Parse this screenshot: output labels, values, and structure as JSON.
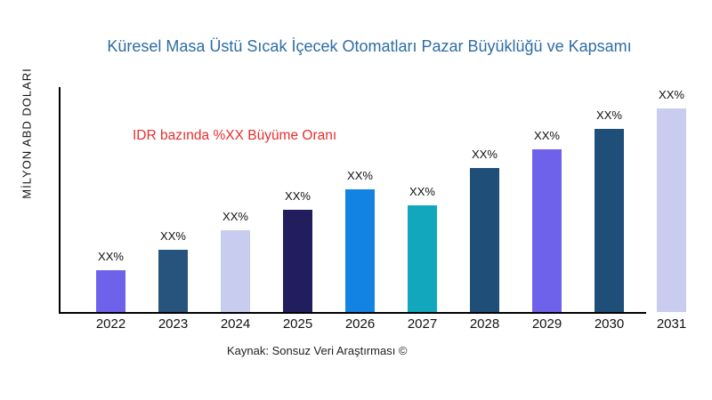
{
  "chart_data": {
    "type": "bar",
    "title": "Küresel Masa Üstü Sıcak İçecek Otomatları Pazar Büyüklüğü ve Kapsamı",
    "ylabel": "MİLYON ABD DOLARI",
    "xlabel": "",
    "annotation": "IDR bazında %XX Büyüme Oranı",
    "source": "Kaynak: Sonsuz Veri Araştırması ©",
    "categories": [
      "2022",
      "2023",
      "2024",
      "2025",
      "2026",
      "2027",
      "2028",
      "2029",
      "2030",
      "2031"
    ],
    "values": [
      20.5,
      30.6,
      40.2,
      50.2,
      60.3,
      52.4,
      70.8,
      79.9,
      90.0,
      100.0
    ],
    "values_estimated": true,
    "value_scale": "relative index, 2031 bar = 100 (actual figures masked as XX% in source image)",
    "bar_labels": [
      "XX%",
      "XX%",
      "XX%",
      "XX%",
      "XX%",
      "XX%",
      "XX%",
      "XX%",
      "XX%",
      "XX%"
    ],
    "bar_colors": [
      "#6F62EA",
      "#26547C",
      "#C8CCEE",
      "#221E5E",
      "#1283E3",
      "#13A7BE",
      "#1F4E79",
      "#6F62EA",
      "#1F4E79",
      "#C8CCEE"
    ],
    "ylim": [
      0,
      105
    ],
    "grid": false,
    "legend": false
  },
  "colors": {
    "background": "#FFFFFF",
    "title": "#2E6DA4",
    "annotation": "#E62E2E",
    "axis": "#000000",
    "tick_text": "#111111",
    "bar_label_text": "#111111",
    "source_text": "#1F1F1F"
  }
}
